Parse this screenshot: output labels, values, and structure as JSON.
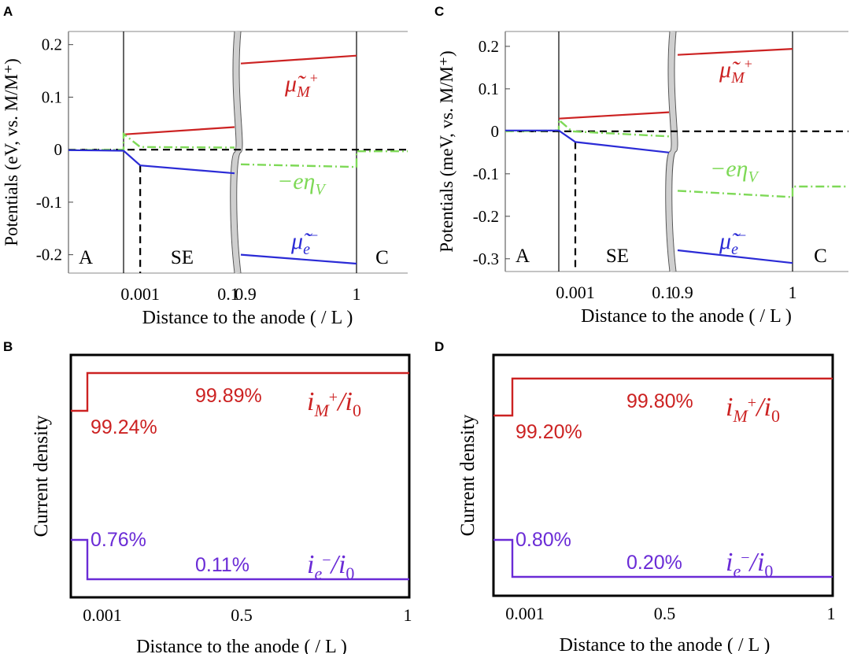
{
  "colors": {
    "red": "#cc2222",
    "blue": "#2b2bd6",
    "green": "#7ed957",
    "purple": "#6a2bd6",
    "black": "#000000",
    "gap": "#cfcfcf"
  },
  "chart_data": [
    {
      "panel": "A",
      "type": "line",
      "ylabel": "Potentials (eV, vs. M/M⁺)",
      "xlabel": "Distance to the anode ( / L )",
      "ylim": [
        -0.235,
        0.225
      ],
      "yticks": [
        "0.2",
        "0.1",
        "0",
        "-0.1",
        "-0.2"
      ],
      "ytick_values": [
        0.2,
        0.1,
        0,
        -0.1,
        -0.2
      ],
      "xtick_labels": [
        "0.001",
        "0.1",
        "0.9",
        "1"
      ],
      "regions": [
        "A",
        "SE",
        "C"
      ],
      "series": [
        {
          "name": "μ̃_M⁺",
          "label_main": "μ̃",
          "label_sub": "M",
          "label_sup": "+",
          "color": "red",
          "segments": [
            [
              [
                0.0,
                0.029
              ],
              [
                0.1,
                0.043
              ]
            ],
            [
              [
                0.9,
                0.164
              ],
              [
                1.0,
                0.179
              ]
            ]
          ]
        },
        {
          "name": "−eη_V",
          "label_main": "−eη",
          "label_sub": "V",
          "color": "green",
          "dashed": true,
          "segments": [
            [
              [
                -0.1,
                -0.001
              ],
              [
                0.0,
                0.0
              ],
              [
                0.0,
                0.03
              ],
              [
                0.015,
                0.005
              ],
              [
                0.1,
                0.004
              ]
            ],
            [
              [
                0.9,
                -0.028
              ],
              [
                1.0,
                -0.033
              ],
              [
                1.0,
                -0.003
              ],
              [
                1.1,
                -0.003
              ]
            ]
          ]
        },
        {
          "name": "μ̃_e⁻",
          "label_main": "μ̃",
          "label_sub": "e",
          "label_sup": "−",
          "color": "blue",
          "segments": [
            [
              [
                -0.1,
                -0.001
              ],
              [
                0.0,
                -0.002
              ],
              [
                0.015,
                -0.03
              ],
              [
                0.1,
                -0.045
              ]
            ],
            [
              [
                0.9,
                -0.2
              ],
              [
                1.0,
                -0.217
              ]
            ]
          ]
        }
      ]
    },
    {
      "panel": "B",
      "type": "line",
      "ylabel": "Current density",
      "xlabel": "Distance to the anode ( / L )",
      "xtick_labels": [
        "0.001",
        "0.5",
        "1"
      ],
      "series": [
        {
          "name": "i_M⁺/i_0",
          "label_main": "i",
          "label_sub": "M",
          "label_sup": "+",
          "label_tail": "/i",
          "label_tail_sub": "0",
          "color": "red",
          "near_anode_pct": "99.24%",
          "bulk_pct": "99.89%"
        },
        {
          "name": "i_e⁻/i_0",
          "label_main": "i",
          "label_sub": "e",
          "label_sup": "−",
          "label_tail": "/i",
          "label_tail_sub": "0",
          "color": "purple",
          "near_anode_pct": "0.76%",
          "bulk_pct": "0.11%"
        }
      ]
    },
    {
      "panel": "C",
      "type": "line",
      "ylabel": "Potentials (meV, vs. M/M⁺)",
      "xlabel": "Distance to the anode ( / L )",
      "ylim": [
        -0.33,
        0.235
      ],
      "yticks": [
        "0.2",
        "0.1",
        "0",
        "-0.1",
        "-0.2",
        "-0.3"
      ],
      "ytick_values": [
        0.2,
        0.1,
        0,
        -0.1,
        -0.2,
        -0.3
      ],
      "xtick_labels": [
        "0.001",
        "0.1",
        "0.9",
        "1"
      ],
      "regions": [
        "A",
        "SE",
        "C"
      ],
      "series": [
        {
          "name": "μ̃_M⁺",
          "label_main": "μ̃",
          "label_sub": "M",
          "label_sup": "+",
          "color": "red",
          "segments": [
            [
              [
                0.0,
                0.03
              ],
              [
                0.1,
                0.045
              ]
            ],
            [
              [
                0.9,
                0.18
              ],
              [
                1.0,
                0.194
              ]
            ]
          ]
        },
        {
          "name": "−eη_V",
          "label_main": "−eη",
          "label_sub": "V",
          "color": "green",
          "dashed": true,
          "segments": [
            [
              [
                -0.1,
                0.0
              ],
              [
                0.0,
                0.002
              ],
              [
                0.0,
                0.027
              ],
              [
                0.012,
                0.0
              ],
              [
                0.1,
                -0.012
              ]
            ],
            [
              [
                0.9,
                -0.14
              ],
              [
                1.0,
                -0.155
              ],
              [
                1.0,
                -0.13
              ],
              [
                1.1,
                -0.13
              ]
            ]
          ]
        },
        {
          "name": "μ̃_e⁻",
          "label_main": "μ̃",
          "label_sub": "e",
          "label_sup": "−",
          "color": "blue",
          "segments": [
            [
              [
                -0.1,
                0.002
              ],
              [
                0.0,
                0.002
              ],
              [
                0.015,
                -0.025
              ],
              [
                0.1,
                -0.05
              ]
            ],
            [
              [
                0.9,
                -0.28
              ],
              [
                1.0,
                -0.31
              ]
            ]
          ]
        }
      ]
    },
    {
      "panel": "D",
      "type": "line",
      "ylabel": "Current density",
      "xlabel": "Distance to the anode ( / L )",
      "xtick_labels": [
        "0.001",
        "0.5",
        "1"
      ],
      "series": [
        {
          "name": "i_M⁺/i_0",
          "label_main": "i",
          "label_sub": "M",
          "label_sup": "+",
          "label_tail": "/i",
          "label_tail_sub": "0",
          "color": "red",
          "near_anode_pct": "99.20%",
          "bulk_pct": "99.80%"
        },
        {
          "name": "i_e⁻/i_0",
          "label_main": "i",
          "label_sub": "e",
          "label_sup": "−",
          "label_tail": "/i",
          "label_tail_sub": "0",
          "color": "purple",
          "near_anode_pct": "0.80%",
          "bulk_pct": "0.20%"
        }
      ]
    }
  ]
}
